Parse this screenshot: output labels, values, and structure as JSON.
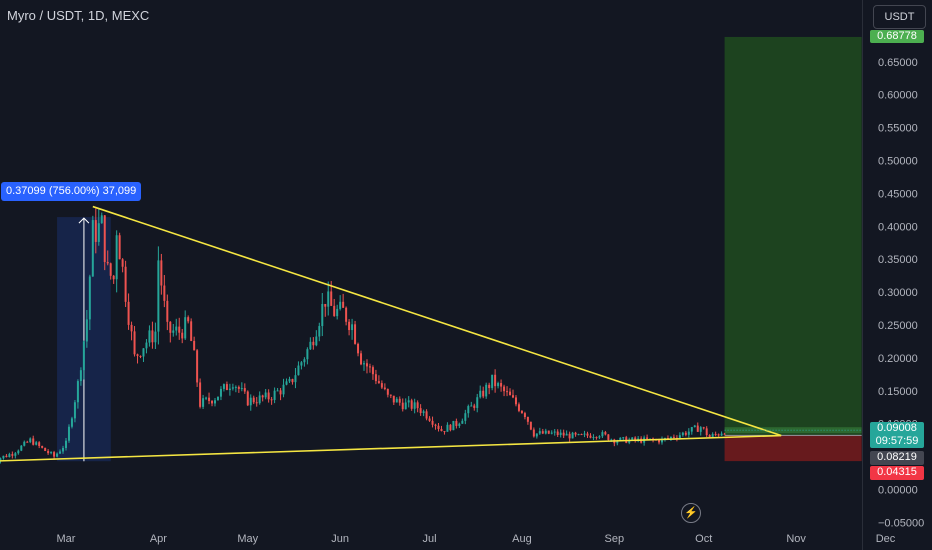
{
  "header": {
    "symbol_title": "Myro / USDT, 1D, MEXC",
    "currency": "USDT"
  },
  "price_scale": {
    "ticks": [
      "0.65000",
      "0.60000",
      "0.55000",
      "0.50000",
      "0.45000",
      "0.40000",
      "0.35000",
      "0.30000",
      "0.25000",
      "0.20000",
      "0.15000",
      "0.10000",
      "0.05000",
      "0.00000",
      "−0.05000"
    ]
  },
  "time_scale": {
    "ticks": [
      "Mar",
      "Apr",
      "May",
      "Jun",
      "Jul",
      "Aug",
      "Sep",
      "Oct",
      "Nov",
      "Dec"
    ]
  },
  "labels": {
    "target_price": "0.68778",
    "last_price": "0.09008",
    "countdown": "09:57:59",
    "entry_price": "0.08219",
    "stop_price": "0.04315",
    "measure": "0.37099 (756.00%) 37,099"
  },
  "colors": {
    "background": "#131722",
    "up": "#26a69a",
    "down": "#ef5350",
    "trendline": "#f5e642",
    "profit_zone": "#1e4620",
    "loss_zone": "#6b1a1e",
    "target_badge": "#4caf50",
    "stop_badge": "#f23645",
    "measure_badge": "#2962ff"
  },
  "chart_data": {
    "type": "candlestick",
    "title": "Myro / USDT, 1D, MEXC",
    "ylim": [
      -0.05,
      0.7
    ],
    "x_range": [
      "2024-02-05",
      "2024-12-20"
    ],
    "candles_close": [
      [
        "2024-02-05",
        0.043
      ],
      [
        "2024-02-12",
        0.055
      ],
      [
        "2024-02-18",
        0.075
      ],
      [
        "2024-02-22",
        0.062
      ],
      [
        "2024-02-26",
        0.05
      ],
      [
        "2024-03-01",
        0.07
      ],
      [
        "2024-03-05",
        0.16
      ],
      [
        "2024-03-08",
        0.26
      ],
      [
        "2024-03-10",
        0.39
      ],
      [
        "2024-03-13",
        0.4
      ],
      [
        "2024-03-15",
        0.33
      ],
      [
        "2024-03-17",
        0.32
      ],
      [
        "2024-03-18",
        0.4
      ],
      [
        "2024-03-21",
        0.3
      ],
      [
        "2024-03-24",
        0.2
      ],
      [
        "2024-03-27",
        0.22
      ],
      [
        "2024-03-31",
        0.24
      ],
      [
        "2024-04-01",
        0.35
      ],
      [
        "2024-04-04",
        0.24
      ],
      [
        "2024-04-08",
        0.24
      ],
      [
        "2024-04-11",
        0.25
      ],
      [
        "2024-04-13",
        0.2
      ],
      [
        "2024-04-15",
        0.13
      ],
      [
        "2024-04-20",
        0.14
      ],
      [
        "2024-04-26",
        0.165
      ],
      [
        "2024-05-01",
        0.135
      ],
      [
        "2024-05-08",
        0.14
      ],
      [
        "2024-05-15",
        0.16
      ],
      [
        "2024-05-22",
        0.22
      ],
      [
        "2024-05-27",
        0.29
      ],
      [
        "2024-05-30",
        0.27
      ],
      [
        "2024-06-02",
        0.27
      ],
      [
        "2024-06-05",
        0.25
      ],
      [
        "2024-06-08",
        0.2
      ],
      [
        "2024-06-13",
        0.17
      ],
      [
        "2024-06-17",
        0.14
      ],
      [
        "2024-06-22",
        0.13
      ],
      [
        "2024-06-27",
        0.125
      ],
      [
        "2024-07-01",
        0.11
      ],
      [
        "2024-07-05",
        0.09
      ],
      [
        "2024-07-10",
        0.1
      ],
      [
        "2024-07-16",
        0.13
      ],
      [
        "2024-07-22",
        0.165
      ],
      [
        "2024-07-28",
        0.14
      ],
      [
        "2024-08-02",
        0.115
      ],
      [
        "2024-08-05",
        0.085
      ],
      [
        "2024-08-12",
        0.085
      ],
      [
        "2024-08-20",
        0.08
      ],
      [
        "2024-08-27",
        0.085
      ],
      [
        "2024-09-01",
        0.075
      ],
      [
        "2024-09-10",
        0.075
      ],
      [
        "2024-09-17",
        0.075
      ],
      [
        "2024-09-24",
        0.085
      ],
      [
        "2024-09-30",
        0.095
      ],
      [
        "2024-10-03",
        0.08
      ],
      [
        "2024-10-06",
        0.085
      ],
      [
        "2024-10-08",
        0.09008
      ]
    ],
    "annotations": {
      "trendline_upper": [
        [
          "2024-03-10",
          0.43
        ],
        [
          "2024-10-27",
          0.082
        ]
      ],
      "trendline_lower": [
        [
          "2024-02-05",
          0.043
        ],
        [
          "2024-10-27",
          0.082
        ]
      ],
      "measure_range": {
        "from": [
          "2024-02-27",
          0.043
        ],
        "to": [
          "2024-03-12",
          0.414
        ],
        "text": "0.37099 (756.00%) 37,099"
      },
      "position": {
        "start": "2024-10-08",
        "end": "2024-11-23",
        "entry": 0.08219,
        "target": 0.68778,
        "stop": 0.04315
      }
    },
    "last_price": 0.09008
  }
}
